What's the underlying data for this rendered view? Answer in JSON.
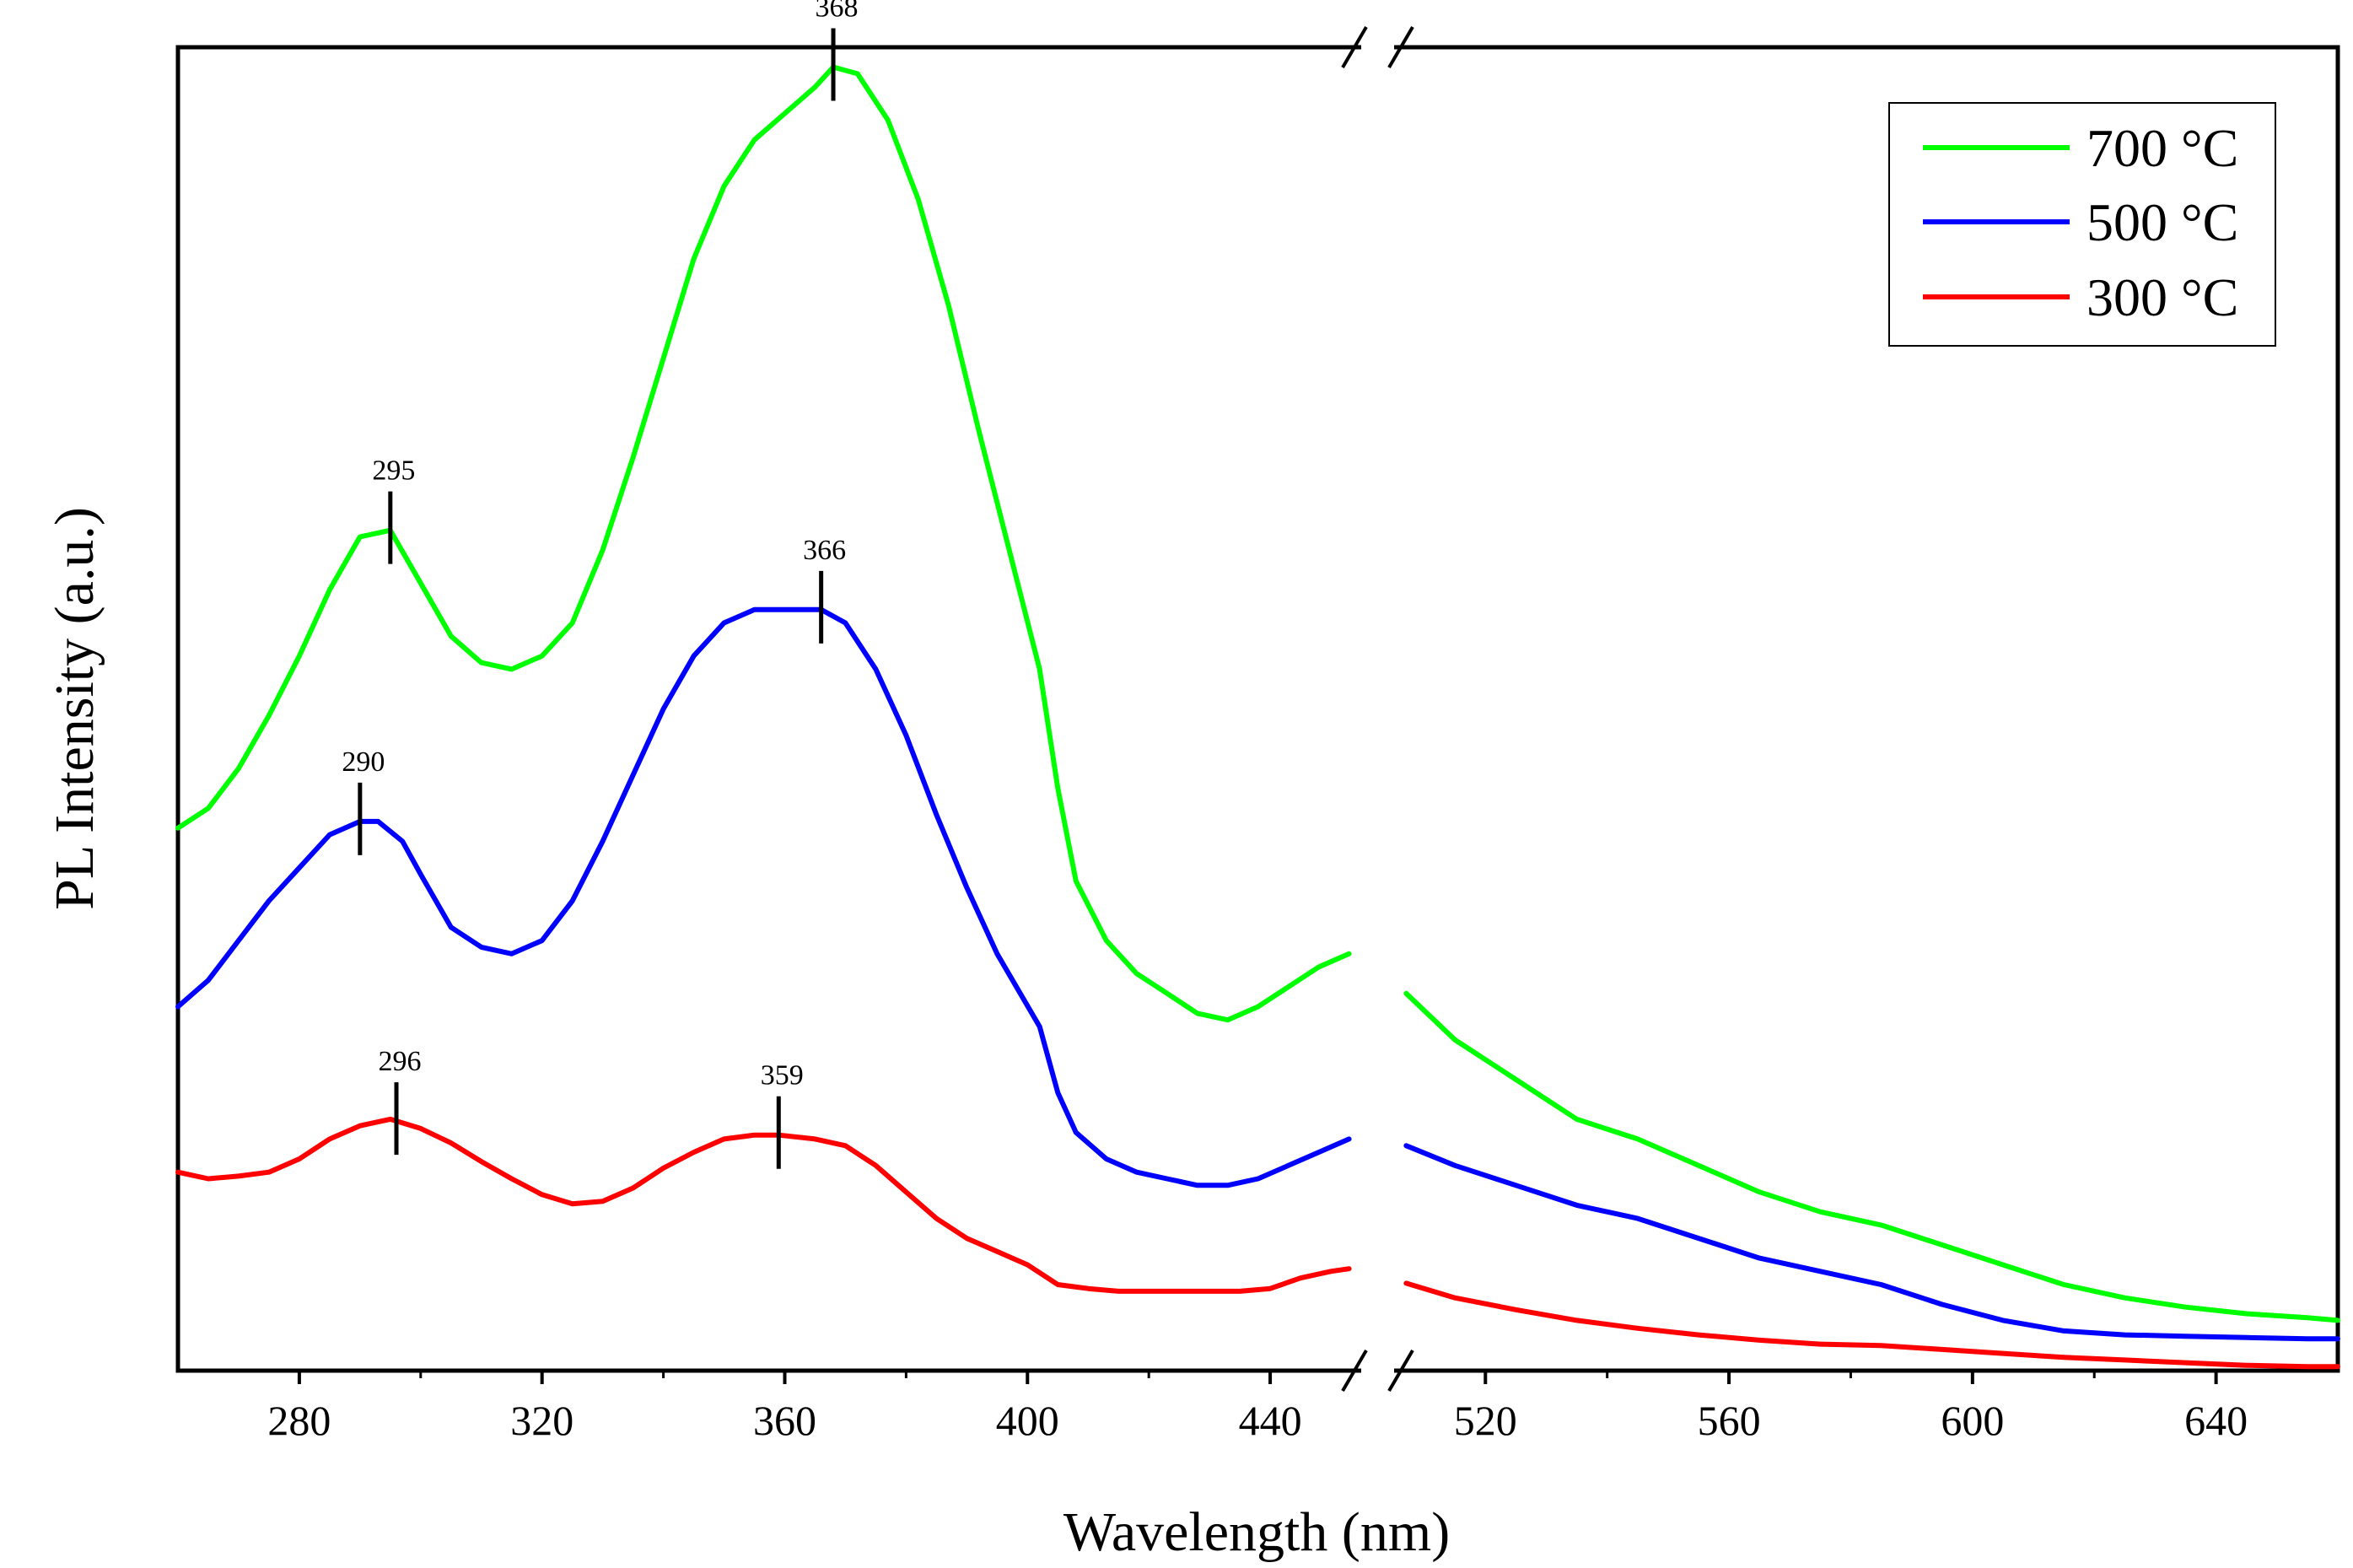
{
  "chart_data": {
    "type": "line",
    "title": "",
    "xlabel": "Wavelength (nm)",
    "ylabel": "PL Intensity (a.u.)",
    "axis_break": [
      455,
      505
    ],
    "xlim": [
      260,
      660
    ],
    "ylim": [
      0,
      100
    ],
    "x_ticks": [
      "280",
      "320",
      "360",
      "400",
      "440",
      "520",
      "560",
      "600",
      "640"
    ],
    "x_tick_values": [
      280,
      320,
      360,
      400,
      440,
      520,
      560,
      600,
      640
    ],
    "legend_position": "top-right",
    "colors": {
      "700": "#00ff00",
      "500": "#0000ff",
      "300": "#ff0000",
      "axis": "#000000"
    },
    "series": [
      {
        "name": "700 °C",
        "color": "#00ff00",
        "segments": [
          [
            [
              260,
              41
            ],
            [
              265,
              42.5
            ],
            [
              270,
              45.5
            ],
            [
              275,
              49.5
            ],
            [
              280,
              54
            ],
            [
              285,
              59
            ],
            [
              290,
              63
            ],
            [
              295,
              63.5
            ],
            [
              300,
              59.5
            ],
            [
              305,
              55.5
            ],
            [
              310,
              53.5
            ],
            [
              315,
              53
            ],
            [
              320,
              54
            ],
            [
              325,
              56.5
            ],
            [
              330,
              62
            ],
            [
              335,
              69
            ],
            [
              340,
              76.5
            ],
            [
              345,
              84
            ],
            [
              350,
              89.5
            ],
            [
              355,
              93
            ],
            [
              360,
              95
            ],
            [
              365,
              97
            ],
            [
              368,
              98.5
            ],
            [
              372,
              98
            ],
            [
              377,
              94.5
            ],
            [
              382,
              88.5
            ],
            [
              387,
              80.5
            ],
            [
              392,
              71
            ],
            [
              397,
              62
            ],
            [
              402,
              53
            ],
            [
              405,
              44
            ],
            [
              408,
              37
            ],
            [
              413,
              32.5
            ],
            [
              418,
              30
            ],
            [
              423,
              28.5
            ],
            [
              428,
              27
            ],
            [
              433,
              26.5
            ],
            [
              438,
              27.5
            ],
            [
              443,
              29
            ],
            [
              448,
              30.5
            ],
            [
              453,
              31.5
            ]
          ],
          [
            [
              507,
              28.5
            ],
            [
              515,
              25
            ],
            [
              525,
              22
            ],
            [
              535,
              19
            ],
            [
              545,
              17.5
            ],
            [
              555,
              15.5
            ],
            [
              565,
              13.5
            ],
            [
              575,
              12
            ],
            [
              585,
              11
            ],
            [
              595,
              9.5
            ],
            [
              605,
              8
            ],
            [
              615,
              6.5
            ],
            [
              625,
              5.5
            ],
            [
              635,
              4.8
            ],
            [
              645,
              4.3
            ],
            [
              655,
              4
            ],
            [
              660,
              3.8
            ]
          ]
        ],
        "peaks": [
          295,
          368
        ]
      },
      {
        "name": "500 °C",
        "color": "#0000ff",
        "segments": [
          [
            [
              260,
              27.5
            ],
            [
              265,
              29.5
            ],
            [
              270,
              32.5
            ],
            [
              275,
              35.5
            ],
            [
              280,
              38
            ],
            [
              285,
              40.5
            ],
            [
              290,
              41.5
            ],
            [
              293,
              41.5
            ],
            [
              297,
              40
            ],
            [
              300,
              37.5
            ],
            [
              305,
              33.5
            ],
            [
              310,
              32
            ],
            [
              315,
              31.5
            ],
            [
              320,
              32.5
            ],
            [
              325,
              35.5
            ],
            [
              330,
              40
            ],
            [
              335,
              45
            ],
            [
              340,
              50
            ],
            [
              345,
              54
            ],
            [
              350,
              56.5
            ],
            [
              355,
              57.5
            ],
            [
              360,
              57.5
            ],
            [
              366,
              57.5
            ],
            [
              370,
              56.5
            ],
            [
              375,
              53
            ],
            [
              380,
              48
            ],
            [
              385,
              42
            ],
            [
              390,
              36.5
            ],
            [
              395,
              31.5
            ],
            [
              402,
              26
            ],
            [
              405,
              21
            ],
            [
              408,
              18
            ],
            [
              413,
              16
            ],
            [
              418,
              15
            ],
            [
              423,
              14.5
            ],
            [
              428,
              14
            ],
            [
              433,
              14
            ],
            [
              438,
              14.5
            ],
            [
              443,
              15.5
            ],
            [
              448,
              16.5
            ],
            [
              453,
              17.5
            ]
          ],
          [
            [
              507,
              17
            ],
            [
              515,
              15.5
            ],
            [
              525,
              14
            ],
            [
              535,
              12.5
            ],
            [
              545,
              11.5
            ],
            [
              555,
              10
            ],
            [
              565,
              8.5
            ],
            [
              575,
              7.5
            ],
            [
              585,
              6.5
            ],
            [
              595,
              5
            ],
            [
              605,
              3.8
            ],
            [
              615,
              3
            ],
            [
              625,
              2.7
            ],
            [
              635,
              2.6
            ],
            [
              645,
              2.5
            ],
            [
              655,
              2.4
            ],
            [
              660,
              2.4
            ]
          ]
        ],
        "peaks": [
          290,
          366
        ]
      },
      {
        "name": "300 °C",
        "color": "#ff0000",
        "segments": [
          [
            [
              260,
              15
            ],
            [
              265,
              14.5
            ],
            [
              270,
              14.7
            ],
            [
              275,
              15
            ],
            [
              280,
              16
            ],
            [
              285,
              17.5
            ],
            [
              290,
              18.5
            ],
            [
              295,
              19
            ],
            [
              300,
              18.3
            ],
            [
              305,
              17.2
            ],
            [
              310,
              15.8
            ],
            [
              315,
              14.5
            ],
            [
              320,
              13.3
            ],
            [
              325,
              12.6
            ],
            [
              330,
              12.8
            ],
            [
              335,
              13.8
            ],
            [
              340,
              15.3
            ],
            [
              345,
              16.5
            ],
            [
              350,
              17.5
            ],
            [
              355,
              17.8
            ],
            [
              359,
              17.8
            ],
            [
              365,
              17.5
            ],
            [
              370,
              17
            ],
            [
              375,
              15.5
            ],
            [
              380,
              13.5
            ],
            [
              385,
              11.5
            ],
            [
              390,
              10
            ],
            [
              395,
              9
            ],
            [
              400,
              8
            ],
            [
              405,
              6.5
            ],
            [
              410,
              6.2
            ],
            [
              415,
              6
            ],
            [
              420,
              6
            ],
            [
              425,
              6
            ],
            [
              430,
              6
            ],
            [
              435,
              6
            ],
            [
              440,
              6.2
            ],
            [
              445,
              7
            ],
            [
              450,
              7.5
            ],
            [
              453,
              7.7
            ]
          ],
          [
            [
              507,
              6.6
            ],
            [
              515,
              5.5
            ],
            [
              525,
              4.6
            ],
            [
              535,
              3.8
            ],
            [
              545,
              3.2
            ],
            [
              555,
              2.7
            ],
            [
              565,
              2.3
            ],
            [
              575,
              2
            ],
            [
              585,
              1.9
            ],
            [
              595,
              1.6
            ],
            [
              605,
              1.3
            ],
            [
              615,
              1
            ],
            [
              625,
              0.8
            ],
            [
              635,
              0.6
            ],
            [
              645,
              0.4
            ],
            [
              655,
              0.3
            ],
            [
              660,
              0.3
            ]
          ]
        ],
        "peaks": [
          296,
          359
        ]
      }
    ],
    "peak_annotations": [
      {
        "label": "368",
        "series": "700 °C",
        "x": 368
      },
      {
        "label": "295",
        "series": "700 °C",
        "x": 295
      },
      {
        "label": "366",
        "series": "500 °C",
        "x": 366
      },
      {
        "label": "290",
        "series": "500 °C",
        "x": 290
      },
      {
        "label": "296",
        "series": "300 °C",
        "x": 296
      },
      {
        "label": "359",
        "series": "300 °C",
        "x": 359
      }
    ],
    "legend": [
      "700 °C",
      "500 °C",
      "300 °C"
    ]
  }
}
